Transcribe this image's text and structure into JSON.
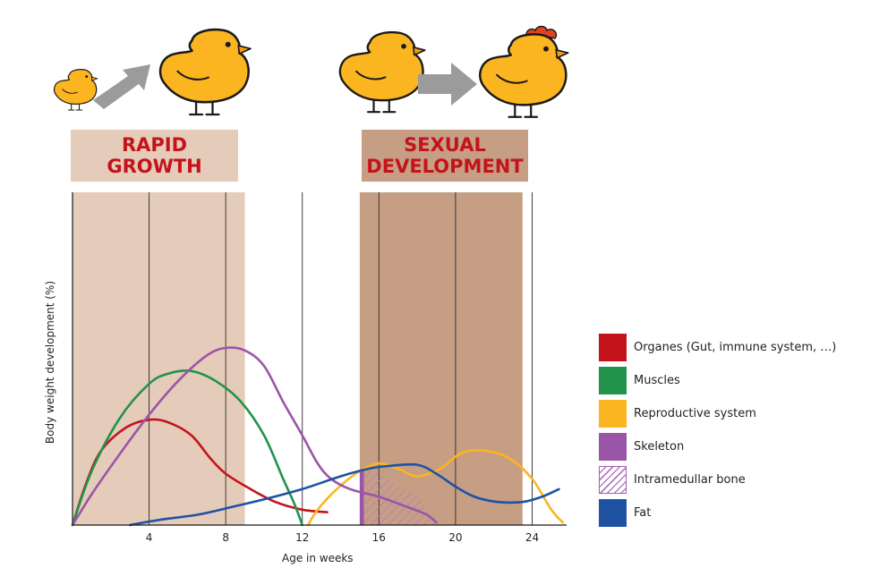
{
  "phases": {
    "rapid_growth": {
      "line1": "RAPID",
      "line2": "GROWTH",
      "weeks": [
        0,
        9
      ],
      "color": "#e5cbb9"
    },
    "sexual_development": {
      "line1": "SEXUAL",
      "line2": "DEVELOPMENT",
      "weeks": [
        15,
        23.5
      ],
      "color": "#c59e84"
    },
    "label_color": "#c4131b"
  },
  "icons": [
    "small-chick-icon",
    "gray-arrow-up-right-icon",
    "chick-icon",
    "chick-icon",
    "gray-arrow-right-icon",
    "hen-icon"
  ],
  "legend": [
    {
      "label": "Organes (Gut, immune system, …)",
      "color": "#c4131b",
      "pattern": "solid"
    },
    {
      "label": "Muscles",
      "color": "#22934a",
      "pattern": "solid"
    },
    {
      "label": " Reproductive system",
      "color": "#fbb520",
      "pattern": "solid"
    },
    {
      "label": "Skeleton",
      "color": "#9b55a8",
      "pattern": "solid"
    },
    {
      "label": "Intramedullar bone",
      "color": "#b57ac1",
      "pattern": "hatched"
    },
    {
      "label": "Fat",
      "color": "#1f52a2",
      "pattern": "solid"
    }
  ],
  "chart_data": {
    "type": "line",
    "title": "",
    "xlabel": "Age in weeks",
    "ylabel": "Body weight development (%)",
    "xlim": [
      0,
      25.8
    ],
    "ylim": [
      0,
      100
    ],
    "x_ticks": [
      4,
      8,
      12,
      16,
      20,
      24
    ],
    "gridlines_x": [
      0,
      4,
      8,
      12,
      16,
      20,
      24
    ],
    "y_ticks": [],
    "series": [
      {
        "name": "Organes (Gut, immune system, …)",
        "color": "#c4131b",
        "points": [
          [
            0,
            0
          ],
          [
            0.7,
            16
          ],
          [
            1.5,
            29
          ],
          [
            2.8,
            38
          ],
          [
            4,
            41
          ],
          [
            5,
            40
          ],
          [
            6.2,
            35
          ],
          [
            7.2,
            26
          ],
          [
            8,
            20
          ],
          [
            9.3,
            14
          ],
          [
            10.6,
            9
          ],
          [
            12,
            6
          ],
          [
            13.3,
            5
          ]
        ]
      },
      {
        "name": "Muscles",
        "color": "#22934a",
        "points": [
          [
            0,
            0
          ],
          [
            1,
            21
          ],
          [
            2.5,
            42
          ],
          [
            4,
            55
          ],
          [
            5,
            59
          ],
          [
            6.2,
            60
          ],
          [
            7.5,
            56
          ],
          [
            8.8,
            48
          ],
          [
            10,
            35
          ],
          [
            11,
            18
          ],
          [
            11.6,
            8
          ],
          [
            12,
            0
          ]
        ]
      },
      {
        "name": "Reproductive system",
        "color": "#fbb520",
        "points": [
          [
            12.3,
            0
          ],
          [
            12.8,
            6
          ],
          [
            13.8,
            14
          ],
          [
            15,
            21
          ],
          [
            16,
            24
          ],
          [
            17,
            22
          ],
          [
            18,
            19
          ],
          [
            19.2,
            22
          ],
          [
            20.3,
            28
          ],
          [
            21.5,
            29
          ],
          [
            22.8,
            26
          ],
          [
            24,
            18
          ],
          [
            25,
            6
          ],
          [
            25.6,
            1
          ]
        ]
      },
      {
        "name": "Skeleton",
        "color": "#9b55a8",
        "points": [
          [
            0,
            0
          ],
          [
            1,
            12
          ],
          [
            2.5,
            28
          ],
          [
            4,
            43
          ],
          [
            5.5,
            56
          ],
          [
            7,
            66
          ],
          [
            8,
            69
          ],
          [
            9,
            68
          ],
          [
            10,
            62
          ],
          [
            11,
            48
          ],
          [
            12,
            35
          ],
          [
            12.8,
            24
          ],
          [
            13.5,
            18
          ],
          [
            14.5,
            14
          ],
          [
            16,
            11
          ],
          [
            17.5,
            7
          ],
          [
            18.5,
            4
          ],
          [
            19,
            1
          ]
        ]
      },
      {
        "name": "Fat",
        "color": "#1f52a2",
        "points": [
          [
            3,
            0
          ],
          [
            4.5,
            2
          ],
          [
            6.5,
            4
          ],
          [
            8.3,
            7
          ],
          [
            10,
            10
          ],
          [
            12,
            14
          ],
          [
            14,
            19
          ],
          [
            15.5,
            22
          ],
          [
            16.5,
            23
          ],
          [
            18,
            23.5
          ],
          [
            19,
            20
          ],
          [
            20,
            15
          ],
          [
            21,
            11
          ],
          [
            22.2,
            9
          ],
          [
            23.5,
            9
          ],
          [
            24.5,
            11
          ],
          [
            25.4,
            14
          ]
        ]
      }
    ],
    "intramedullar_bone": {
      "name": "Intramedullar bone",
      "color": "#b57ac1",
      "x_range": [
        15.2,
        19
      ],
      "upper": [
        [
          15.2,
          21
        ],
        [
          16,
          20
        ],
        [
          17,
          15
        ],
        [
          18,
          11
        ],
        [
          19,
          0
        ]
      ],
      "bar_x": 15,
      "bar_color": "#9b55a8"
    },
    "legend_position": "right"
  }
}
